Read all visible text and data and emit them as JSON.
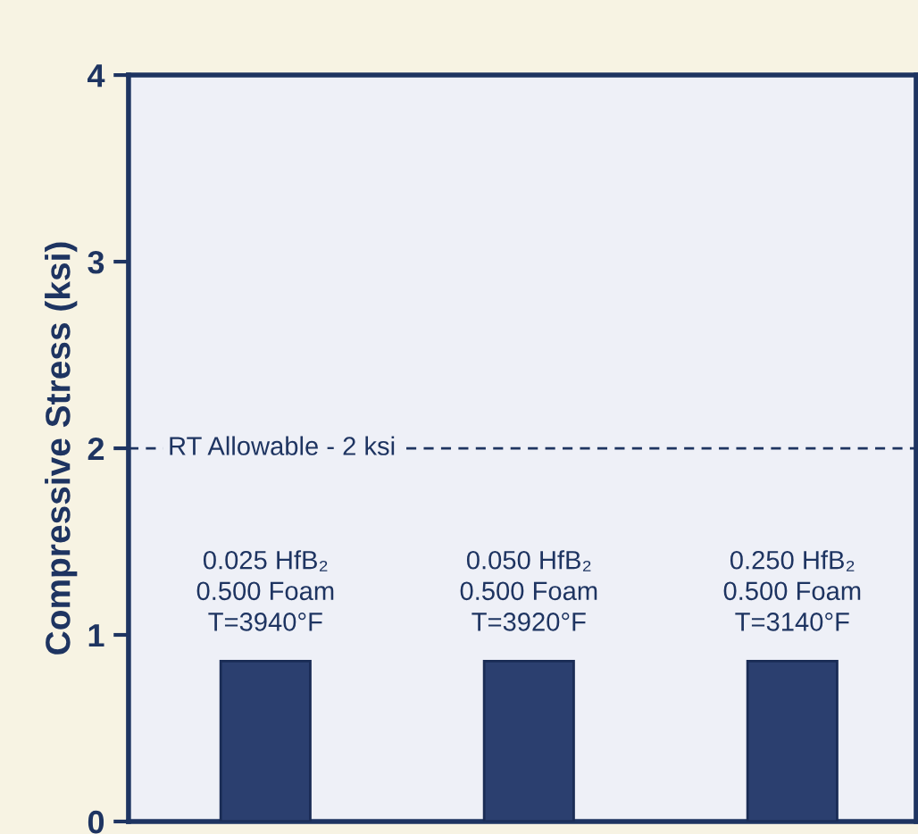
{
  "chart_data": {
    "type": "bar",
    "ylabel": "Compressive Stress (ksi)",
    "categories": [
      "0.025 HfB₂\n0.500 Foam\nT=3940°F",
      "0.050 HfB₂\n0.500 Foam\nT=3920°F",
      "0.250 HfB₂\n0.500 Foam\nT=3140°F"
    ],
    "values": [
      0.86,
      0.86,
      0.86
    ],
    "color": "#2b3f6f",
    "ylim": [
      0,
      4
    ],
    "yticks": [
      0,
      1,
      2,
      3,
      4
    ],
    "ref_lines": [
      {
        "axis": "y",
        "value": 2,
        "label": "RT Allowable - 2 ksi",
        "color": "#1e3461",
        "line_style": "dashed"
      }
    ],
    "grid": false
  }
}
